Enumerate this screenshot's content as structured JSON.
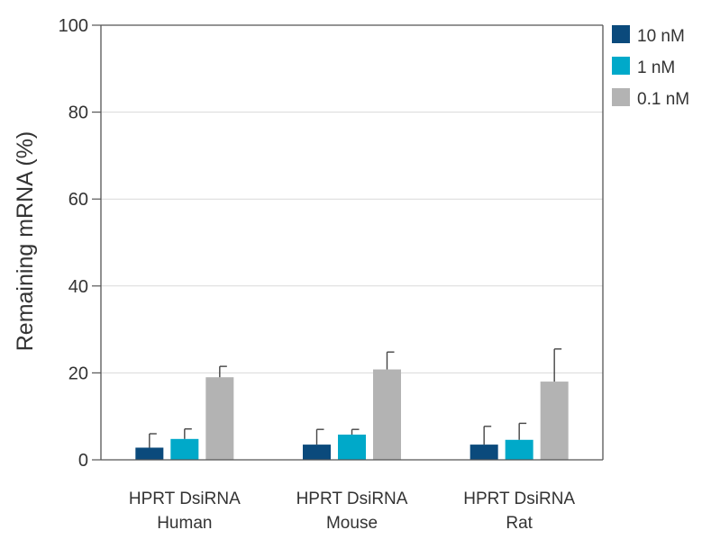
{
  "chart_data": {
    "type": "bar",
    "ylabel": "Remaining mRNA (%)",
    "ylim": [
      0,
      100
    ],
    "yticks": [
      0,
      20,
      40,
      60,
      80,
      100
    ],
    "grid": true,
    "legend_position": "top-right",
    "categories": [
      {
        "line1": "HPRT DsiRNA",
        "line2": "Human"
      },
      {
        "line1": "HPRT DsiRNA",
        "line2": "Mouse"
      },
      {
        "line1": "HPRT DsiRNA",
        "line2": "Rat"
      }
    ],
    "series": [
      {
        "name": "10 nM",
        "color": "#0b4a7c",
        "values": [
          2.8,
          3.5,
          3.5
        ],
        "errors": [
          3.2,
          3.5,
          4.2
        ]
      },
      {
        "name": "1 nM",
        "color": "#00a9c9",
        "values": [
          4.8,
          5.8,
          4.6
        ],
        "errors": [
          2.3,
          1.2,
          3.8
        ]
      },
      {
        "name": "0.1 nM",
        "color": "#b3b3b3",
        "values": [
          19.0,
          20.8,
          18.0
        ],
        "errors": [
          2.5,
          4.0,
          7.5
        ]
      }
    ]
  }
}
